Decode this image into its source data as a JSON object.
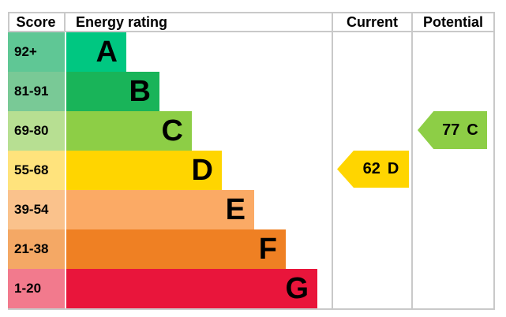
{
  "header": {
    "score": "Score",
    "energy_rating": "Energy rating",
    "current": "Current",
    "potential": "Potential"
  },
  "bands": [
    {
      "letter": "A",
      "score_range": "92+",
      "bar_color": "#00c781",
      "cell_color": "#5fc795"
    },
    {
      "letter": "B",
      "score_range": "81-91",
      "bar_color": "#19b459",
      "cell_color": "#79c996"
    },
    {
      "letter": "C",
      "score_range": "69-80",
      "bar_color": "#8dce46",
      "cell_color": "#b7df92"
    },
    {
      "letter": "D",
      "score_range": "55-68",
      "bar_color": "#ffd500",
      "cell_color": "#ffe37c"
    },
    {
      "letter": "E",
      "score_range": "39-54",
      "bar_color": "#fbaa65",
      "cell_color": "#fac28c"
    },
    {
      "letter": "F",
      "score_range": "21-38",
      "bar_color": "#ef8023",
      "cell_color": "#f4a865"
    },
    {
      "letter": "G",
      "score_range": "1-20",
      "bar_color": "#e9153b",
      "cell_color": "#f27a8d"
    }
  ],
  "current": {
    "value": "62",
    "band": "D",
    "color": "#ffd500"
  },
  "potential": {
    "value": "77",
    "band": "C",
    "color": "#8dce46"
  },
  "chart_data": {
    "type": "bar",
    "columns": [
      "Score",
      "Energy rating",
      "Current",
      "Potential"
    ],
    "categories": [
      "A",
      "B",
      "C",
      "D",
      "E",
      "F",
      "G"
    ],
    "score_ranges": [
      "92+",
      "81-91",
      "69-80",
      "55-68",
      "39-54",
      "21-38",
      "1-20"
    ],
    "band_colors": [
      "#00c781",
      "#19b459",
      "#8dce46",
      "#ffd500",
      "#fbaa65",
      "#ef8023",
      "#e9153b"
    ],
    "series": [
      {
        "name": "Current",
        "value": 62,
        "band": "D"
      },
      {
        "name": "Potential",
        "value": 77,
        "band": "C"
      }
    ],
    "legend_position": "none",
    "grid": true
  }
}
